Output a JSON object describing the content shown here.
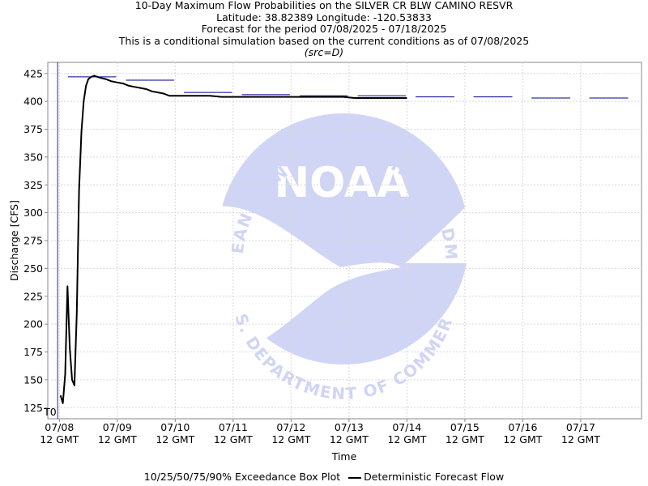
{
  "chart_data": {
    "type": "line",
    "title": "10-Day Maximum Flow Probabilities on the SILVER CR BLW CAMINO RESVR",
    "subtitle_lines": [
      "Latitude: 38.82389 Longitude: -120.53833",
      "Forecast for the period 07/08/2025 - 07/18/2025",
      "This is a conditional simulation based on the current conditions as of 07/08/2025"
    ],
    "source_note": "(src=D)",
    "xlabel": "Time",
    "ylabel": "Discharge [CFS]",
    "ylim": [
      115,
      435
    ],
    "y_ticks": [
      125,
      150,
      175,
      200,
      225,
      250,
      275,
      300,
      325,
      350,
      375,
      400,
      425
    ],
    "xlim": [
      -0.2,
      10.05
    ],
    "x_ticks": [
      {
        "x": 0,
        "date": "07/08",
        "time": "12 GMT"
      },
      {
        "x": 1,
        "date": "07/09",
        "time": "12 GMT"
      },
      {
        "x": 2,
        "date": "07/10",
        "time": "12 GMT"
      },
      {
        "x": 3,
        "date": "07/11",
        "time": "12 GMT"
      },
      {
        "x": 4,
        "date": "07/12",
        "time": "12 GMT"
      },
      {
        "x": 5,
        "date": "07/13",
        "time": "12 GMT"
      },
      {
        "x": 6,
        "date": "07/14",
        "time": "12 GMT"
      },
      {
        "x": 7,
        "date": "07/15",
        "time": "12 GMT"
      },
      {
        "x": 8,
        "date": "07/16",
        "time": "12 GMT"
      },
      {
        "x": 9,
        "date": "07/17",
        "time": "12 GMT"
      }
    ],
    "t0_marker": {
      "x": -0.03,
      "label": "T0"
    },
    "grid": true,
    "legend_position": "bottom",
    "legend": {
      "box_plot_label": "10/25/50/75/90% Exceedance Box Plot",
      "deterministic_label": "Deterministic Forecast Flow"
    },
    "series": [
      {
        "name": "Deterministic Forecast Flow",
        "color": "#000000",
        "x": [
          0.02,
          0.06,
          0.1,
          0.14,
          0.18,
          0.22,
          0.26,
          0.3,
          0.34,
          0.38,
          0.42,
          0.46,
          0.5,
          0.55,
          0.6,
          0.66,
          0.72,
          0.8,
          0.9,
          1.0,
          1.1,
          1.2,
          1.3,
          1.4,
          1.5,
          1.6,
          1.7,
          1.8,
          1.9,
          2.0,
          2.1,
          2.2,
          2.4,
          2.6,
          2.8,
          3.0,
          4.0,
          4.9,
          5.1,
          6.0
        ],
        "y": [
          136,
          129,
          155,
          234,
          178,
          150,
          145,
          210,
          320,
          372,
          400,
          414,
          420,
          422,
          423,
          422,
          421,
          420,
          418,
          417,
          416,
          414,
          413,
          412,
          411,
          409,
          408,
          407,
          405,
          405,
          405,
          405,
          405,
          405,
          404,
          404,
          404,
          404,
          403,
          403
        ]
      },
      {
        "name": "90% Exceedance",
        "color": "#00008B",
        "style": "segments",
        "segments": [
          {
            "x": [
              0.15,
              0.98
            ],
            "y": 422
          },
          {
            "x": [
              1.15,
              1.98
            ],
            "y": 419
          },
          {
            "x": [
              2.15,
              2.98
            ],
            "y": 408
          },
          {
            "x": [
              3.15,
              3.98
            ],
            "y": 406
          },
          {
            "x": [
              4.15,
              4.98
            ],
            "y": 405
          },
          {
            "x": [
              5.15,
              5.98
            ],
            "y": 405
          },
          {
            "x": [
              6.15,
              6.82
            ],
            "y": 404
          },
          {
            "x": [
              7.15,
              7.82
            ],
            "y": 404
          },
          {
            "x": [
              8.15,
              8.82
            ],
            "y": 403
          },
          {
            "x": [
              9.15,
              9.82
            ],
            "y": 403
          }
        ]
      }
    ]
  },
  "watermark": {
    "logo_text": "NOAA",
    "ring_top": "NATIONAL OCEANIC AND ATMOSPHERIC ADMINISTRATION",
    "ring_bottom": "U.S. DEPARTMENT OF COMMERCE"
  }
}
